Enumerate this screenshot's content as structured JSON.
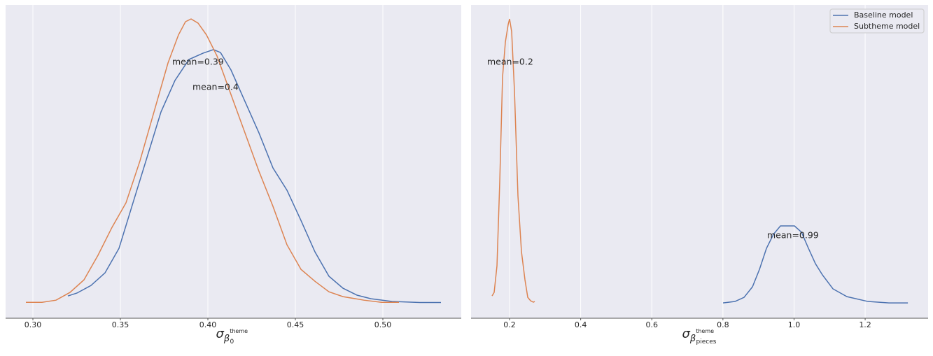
{
  "chart_data": [
    {
      "type": "line",
      "xlabel": {
        "symbol": "σ",
        "sub": "β",
        "sub_sub": "0",
        "sub_sup": "theme"
      },
      "xlim": [
        0.2844,
        0.5448
      ],
      "ylim": [
        -0.73,
        14.2
      ],
      "xticks": [
        {
          "value": 0.3,
          "label": "0.30"
        },
        0.35,
        {
          "value": 0.4,
          "label": "0.40"
        },
        0.45,
        {
          "value": 0.5,
          "label": "0.50"
        }
      ],
      "grid": true,
      "series": [
        {
          "name": "Baseline model",
          "color": "#4c72b0",
          "x": [
            0.32,
            0.3252,
            0.3332,
            0.3412,
            0.3492,
            0.3572,
            0.3652,
            0.3732,
            0.3812,
            0.3892,
            0.3972,
            0.4032,
            0.4072,
            0.4132,
            0.4212,
            0.4292,
            0.4372,
            0.4452,
            0.4532,
            0.4612,
            0.4692,
            0.4772,
            0.4852,
            0.4932,
            0.5052,
            0.5212,
            0.5332
          ],
          "values": [
            0.33,
            0.47,
            0.83,
            1.43,
            2.6,
            4.77,
            6.93,
            9.1,
            10.6,
            11.6,
            11.9,
            12.07,
            11.93,
            11.1,
            9.6,
            8.1,
            6.43,
            5.37,
            3.93,
            2.43,
            1.27,
            0.7,
            0.37,
            0.2,
            0.07,
            0.02,
            0.02
          ]
        },
        {
          "name": "Subtheme model",
          "color": "#dd8452",
          "x": [
            0.296,
            0.3052,
            0.3132,
            0.3212,
            0.3292,
            0.3372,
            0.3452,
            0.3532,
            0.3612,
            0.3692,
            0.3772,
            0.3832,
            0.3872,
            0.3904,
            0.3944,
            0.3992,
            0.4052,
            0.4132,
            0.4212,
            0.4292,
            0.4372,
            0.4452,
            0.4532,
            0.4612,
            0.4692,
            0.4772,
            0.4892,
            0.4992,
            0.5092
          ],
          "values": [
            0.03,
            0.03,
            0.13,
            0.5,
            1.1,
            2.27,
            3.6,
            4.77,
            6.77,
            9.1,
            11.43,
            12.77,
            13.4,
            13.53,
            13.33,
            12.77,
            11.77,
            9.93,
            8.1,
            6.27,
            4.6,
            2.77,
            1.6,
            1.03,
            0.53,
            0.3,
            0.13,
            0.03,
            0.03
          ]
        }
      ],
      "annotations": [
        "mean=0.39",
        "mean=0.4"
      ]
    },
    {
      "type": "line",
      "xlabel": {
        "symbol": "σ",
        "sub": "β",
        "sub_sub": "pieces",
        "sub_sup": "theme"
      },
      "xlim": [
        0.0917,
        1.377
      ],
      "ylim": [
        -1.08,
        20.99
      ],
      "xticks": [
        0.2,
        0.4,
        0.6,
        0.8,
        {
          "value": 1.0,
          "label": "1.0"
        },
        1.2
      ],
      "grid": true,
      "legend": "upper right",
      "series": [
        {
          "name": "Baseline model",
          "color": "#4c72b0",
          "x": [
            0.8004,
            0.8339,
            0.8594,
            0.8831,
            0.9028,
            0.9224,
            0.9421,
            0.9618,
            1.0012,
            1.0209,
            1.0406,
            1.0602,
            1.0799,
            1.1094,
            1.1488,
            1.2079,
            1.2669,
            1.3201
          ],
          "values": [
            0,
            0.1,
            0.39,
            1.13,
            2.36,
            3.84,
            4.83,
            5.42,
            5.42,
            4.98,
            3.84,
            2.76,
            1.97,
            0.99,
            0.44,
            0.1,
            0,
            0
          ]
        },
        {
          "name": "Subtheme model",
          "color": "#dd8452",
          "x": [
            0.1508,
            0.1567,
            0.1646,
            0.1724,
            0.1803,
            0.1882,
            0.1961,
            0.2,
            0.2059,
            0.2138,
            0.2236,
            0.2335,
            0.2433,
            0.2512,
            0.2591,
            0.2669,
            0.2709
          ],
          "values": [
            0.49,
            0.74,
            2.61,
            8.52,
            15.91,
            18.37,
            19.61,
            20,
            19.11,
            14.93,
            7.54,
            3.6,
            1.63,
            0.39,
            0.15,
            0.05,
            0.1
          ]
        }
      ],
      "annotations": [
        "mean=0.2",
        "mean=0.99"
      ]
    }
  ]
}
